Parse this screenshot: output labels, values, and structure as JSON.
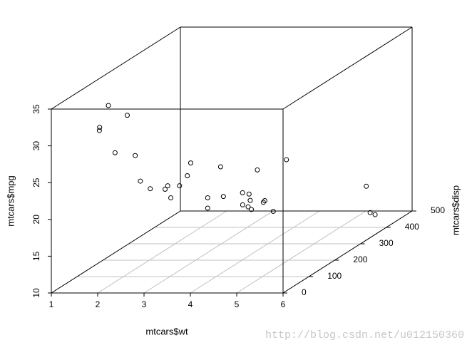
{
  "chart_data": {
    "type": "scatter3d",
    "xlabel": "mtcars$wt",
    "ylabel": "mtcars$mpg",
    "zlabel": "mtcars$disp",
    "annotation": "http://blog.csdn.net/u012150360",
    "xlim": [
      1,
      6
    ],
    "ylim": [
      10,
      35
    ],
    "zlim": [
      0,
      500
    ],
    "xticks": [
      1,
      2,
      3,
      4,
      5,
      6
    ],
    "yticks": [
      10,
      15,
      20,
      25,
      30,
      35
    ],
    "zticks": [
      0,
      100,
      200,
      300,
      400,
      500
    ],
    "grid": true,
    "color": "#000000",
    "x": [
      2.62,
      2.875,
      2.32,
      3.215,
      3.44,
      3.46,
      3.57,
      3.19,
      3.15,
      3.44,
      3.44,
      4.07,
      3.73,
      3.78,
      5.25,
      5.424,
      5.345,
      2.2,
      1.615,
      1.835,
      2.465,
      3.52,
      3.435,
      3.84,
      3.845,
      1.935,
      2.14,
      1.513,
      3.17,
      2.77,
      3.57,
      2.78
    ],
    "y": [
      21.0,
      21.0,
      22.8,
      21.4,
      18.7,
      18.1,
      14.3,
      24.4,
      22.8,
      19.2,
      17.8,
      16.4,
      17.3,
      15.2,
      10.4,
      10.4,
      14.7,
      32.4,
      30.4,
      33.9,
      21.5,
      15.5,
      15.2,
      13.3,
      19.2,
      27.3,
      26.0,
      30.4,
      15.8,
      19.7,
      15.0,
      21.4
    ],
    "z": [
      160,
      160,
      108,
      258,
      360,
      225,
      360,
      146.7,
      140.8,
      167.6,
      167.6,
      275.8,
      275.8,
      275.8,
      472,
      460,
      440,
      78.7,
      75.7,
      71.1,
      120.1,
      318,
      304,
      350,
      400,
      79,
      120.3,
      95.1,
      351,
      145,
      301,
      121
    ]
  }
}
